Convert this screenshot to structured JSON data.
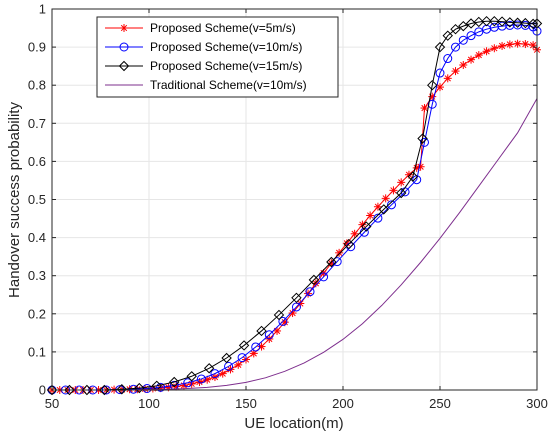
{
  "chart_data": {
    "type": "line",
    "title": "",
    "xlabel": "UE location(m)",
    "ylabel": "Handover success probability",
    "xlim": [
      50,
      300
    ],
    "ylim": [
      0,
      1
    ],
    "xticks": [
      50,
      100,
      150,
      200,
      250,
      300
    ],
    "yticks": [
      0,
      0.1,
      0.2,
      0.3,
      0.4,
      0.5,
      0.6,
      0.7,
      0.8,
      0.9,
      1
    ],
    "grid": true,
    "legend_position": "top-left",
    "series": [
      {
        "name": "Proposed Scheme(v=5m/s)",
        "color": "#ff0000",
        "marker": "asterisk",
        "x": [
          50,
          54,
          58,
          62,
          66,
          70,
          74,
          78,
          82,
          86,
          90,
          94,
          98,
          102,
          106,
          110,
          114,
          118,
          122,
          126,
          130,
          134,
          138,
          142,
          146,
          150,
          154,
          158,
          162,
          166,
          170,
          174,
          178,
          182,
          186,
          190,
          194,
          198,
          202,
          206,
          210,
          214,
          218,
          222,
          226,
          230,
          234,
          238,
          240,
          242,
          246,
          250,
          254,
          258,
          262,
          266,
          270,
          274,
          278,
          282,
          286,
          290,
          294,
          298,
          300
        ],
        "y": [
          0,
          0,
          0,
          0,
          0,
          0,
          0,
          0,
          0.001,
          0.001,
          0.002,
          0.002,
          0.003,
          0.004,
          0.005,
          0.007,
          0.009,
          0.012,
          0.016,
          0.021,
          0.027,
          0.034,
          0.043,
          0.054,
          0.066,
          0.08,
          0.096,
          0.114,
          0.134,
          0.155,
          0.178,
          0.202,
          0.227,
          0.253,
          0.28,
          0.307,
          0.333,
          0.36,
          0.385,
          0.41,
          0.434,
          0.458,
          0.481,
          0.503,
          0.524,
          0.545,
          0.565,
          0.583,
          0.586,
          0.74,
          0.77,
          0.795,
          0.818,
          0.837,
          0.853,
          0.867,
          0.879,
          0.889,
          0.897,
          0.903,
          0.907,
          0.909,
          0.908,
          0.905,
          0.893
        ]
      },
      {
        "name": "Proposed Scheme(v=10m/s)",
        "color": "#0000ff",
        "marker": "circle",
        "x": [
          50,
          57,
          64,
          71,
          78,
          85,
          92,
          99,
          106,
          113,
          120,
          127,
          134,
          141,
          148,
          155,
          162,
          169,
          176,
          183,
          190,
          197,
          204,
          211,
          218,
          225,
          232,
          238,
          242,
          246,
          250,
          254,
          258,
          262,
          266,
          270,
          274,
          278,
          282,
          286,
          290,
          294,
          298,
          300
        ],
        "y": [
          0,
          0,
          0,
          0,
          0,
          0.001,
          0.002,
          0.004,
          0.007,
          0.012,
          0.019,
          0.029,
          0.043,
          0.062,
          0.085,
          0.113,
          0.145,
          0.18,
          0.218,
          0.258,
          0.297,
          0.337,
          0.376,
          0.414,
          0.451,
          0.486,
          0.52,
          0.552,
          0.65,
          0.75,
          0.832,
          0.87,
          0.9,
          0.918,
          0.93,
          0.94,
          0.947,
          0.952,
          0.955,
          0.957,
          0.958,
          0.957,
          0.953,
          0.942
        ]
      },
      {
        "name": "Proposed Scheme(v=15m/s)",
        "color": "#000000",
        "marker": "diamond",
        "x": [
          50,
          59,
          68,
          77,
          86,
          95,
          104,
          113,
          122,
          131,
          140,
          149,
          158,
          167,
          176,
          185,
          194,
          203,
          212,
          221,
          230,
          236,
          241,
          246,
          250,
          254,
          258,
          262,
          266,
          270,
          274,
          278,
          282,
          286,
          290,
          294,
          298,
          300
        ],
        "y": [
          0,
          0,
          0,
          0,
          0.002,
          0.005,
          0.011,
          0.021,
          0.036,
          0.057,
          0.084,
          0.117,
          0.155,
          0.197,
          0.242,
          0.289,
          0.336,
          0.383,
          0.429,
          0.474,
          0.517,
          0.56,
          0.66,
          0.8,
          0.9,
          0.93,
          0.947,
          0.955,
          0.962,
          0.966,
          0.968,
          0.968,
          0.967,
          0.965,
          0.964,
          0.963,
          0.961,
          0.962
        ]
      },
      {
        "name": "Traditional Scheme(v=10m/s)",
        "color": "#7e2f8e",
        "marker": "none",
        "x": [
          50,
          60,
          70,
          80,
          90,
          100,
          110,
          120,
          130,
          140,
          150,
          160,
          170,
          180,
          190,
          200,
          210,
          220,
          230,
          240,
          250,
          260,
          270,
          280,
          290,
          300
        ],
        "y": [
          0,
          0,
          0,
          0,
          0,
          0.001,
          0.002,
          0.004,
          0.007,
          0.012,
          0.02,
          0.032,
          0.049,
          0.071,
          0.099,
          0.133,
          0.174,
          0.222,
          0.276,
          0.335,
          0.398,
          0.465,
          0.535,
          0.605,
          0.675,
          0.765
        ]
      }
    ]
  }
}
